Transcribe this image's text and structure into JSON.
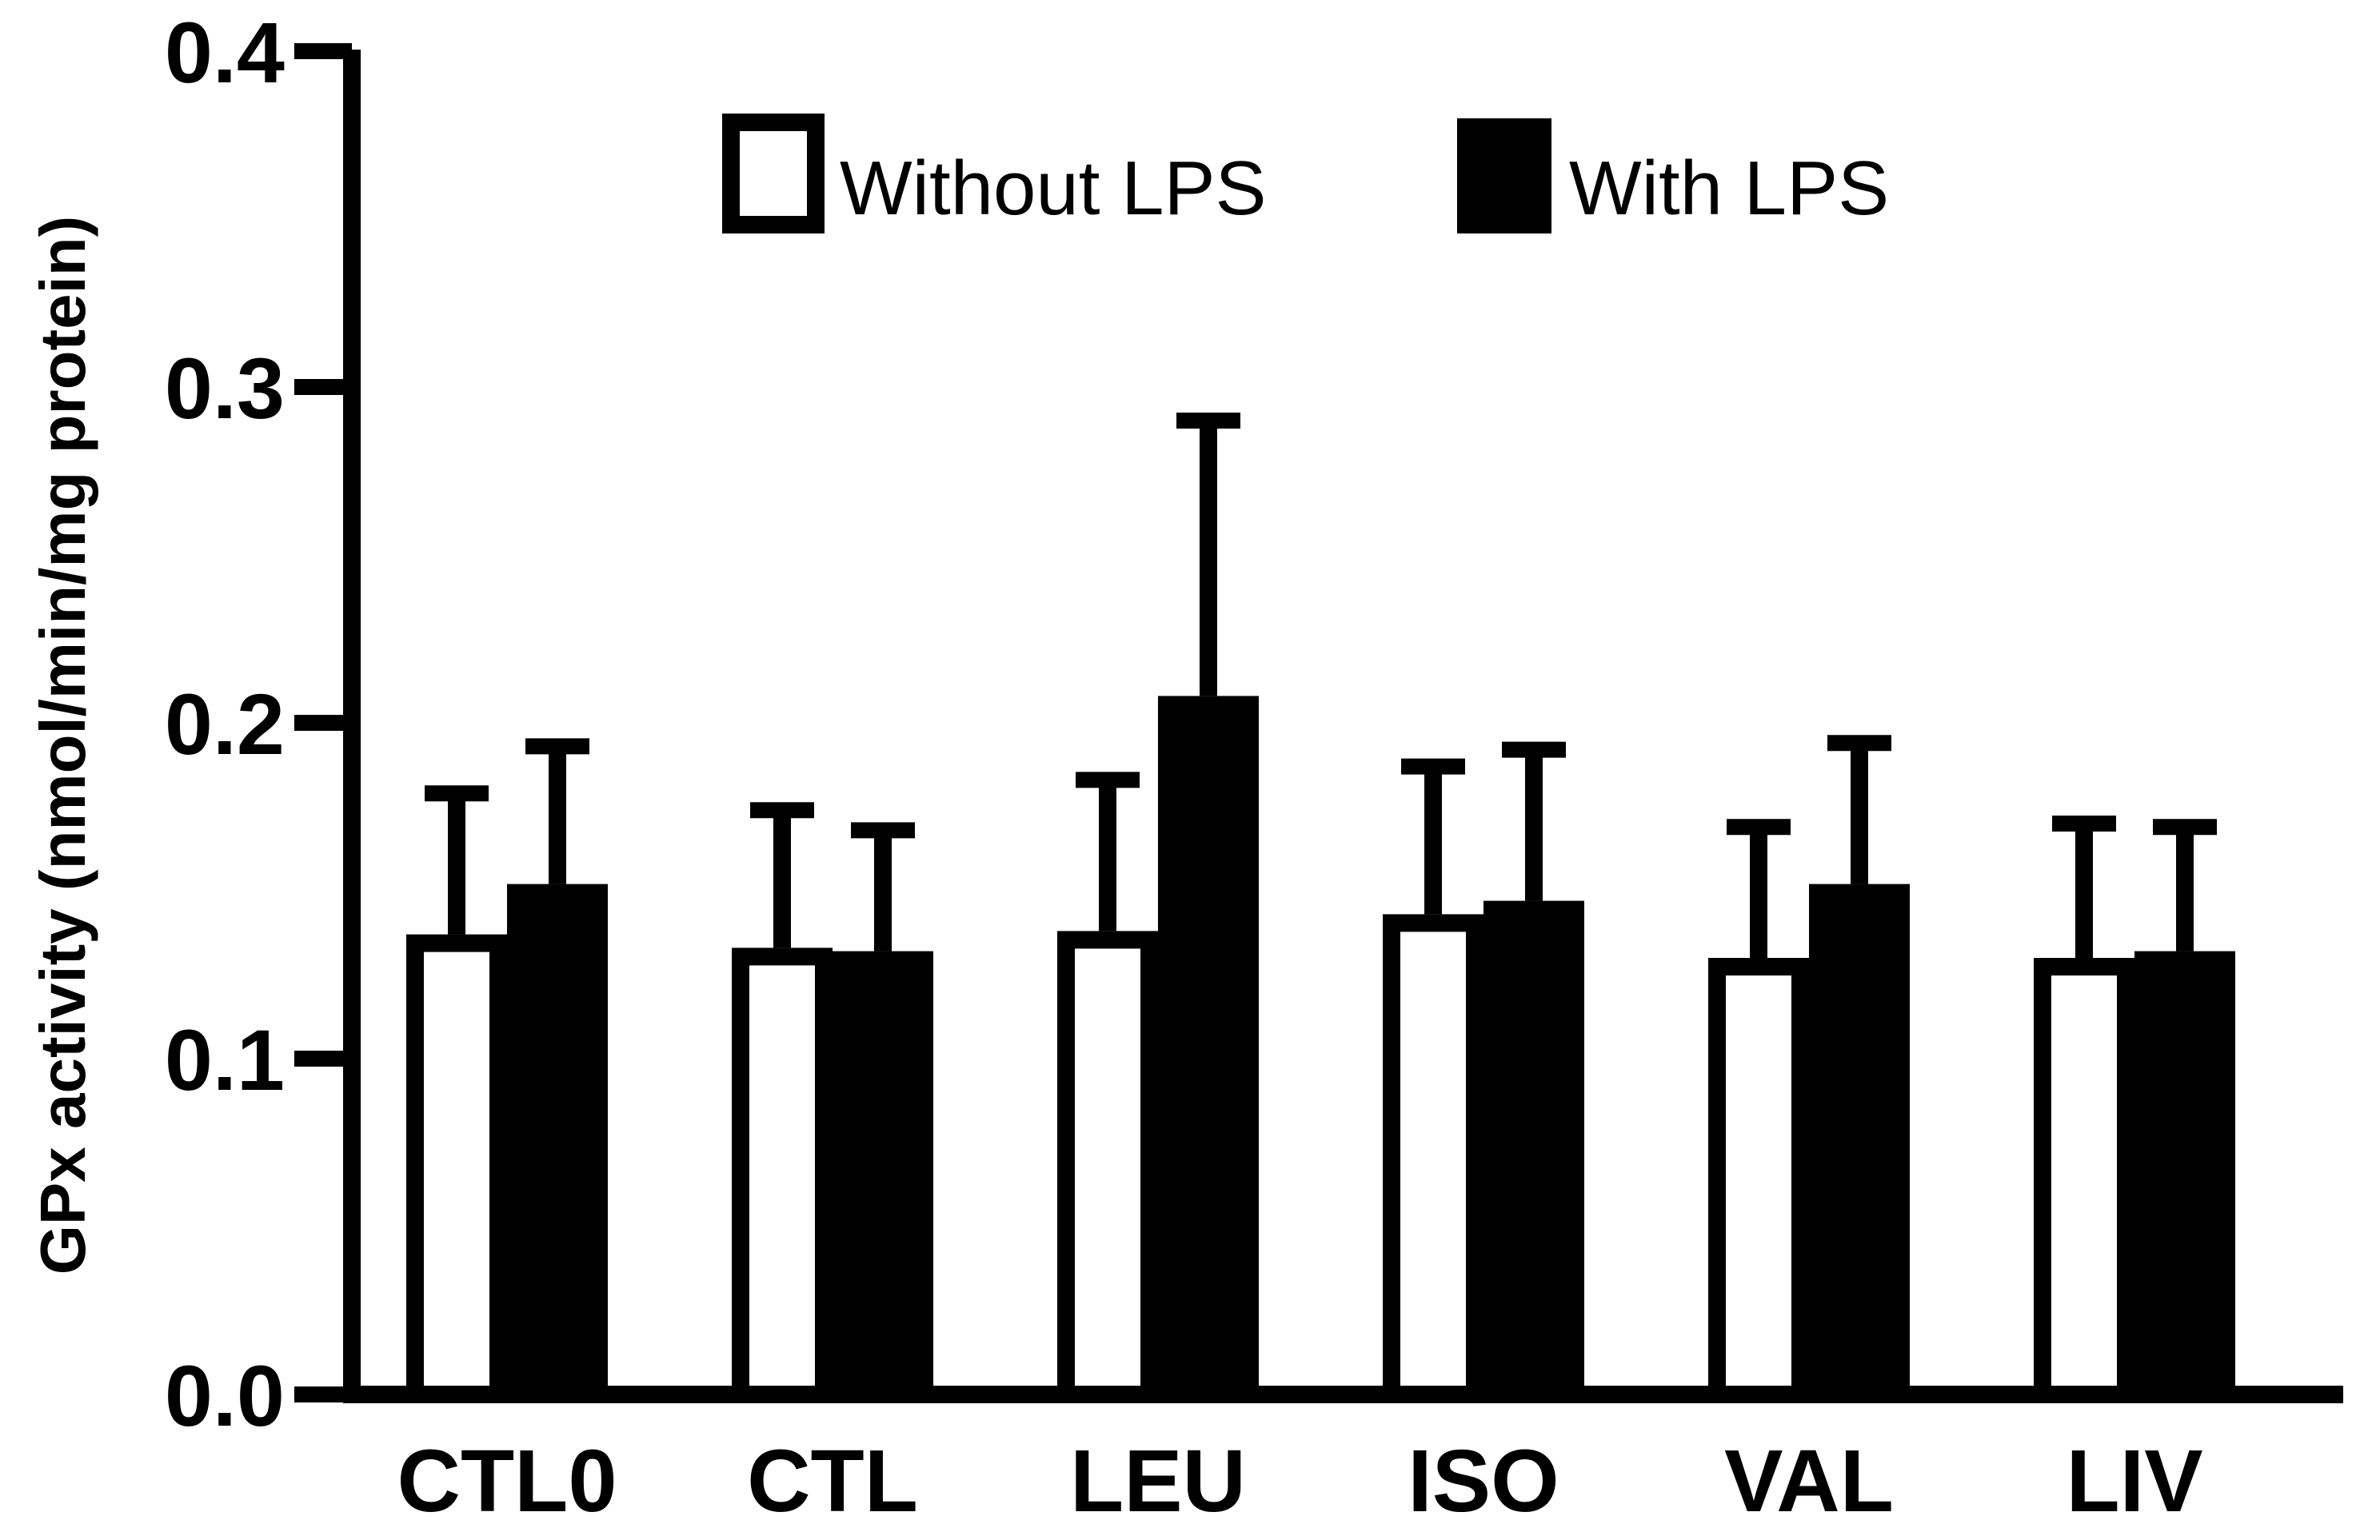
{
  "chart_data": {
    "type": "bar",
    "title": "",
    "xlabel": "",
    "ylabel": "GPx activity (nmol/min/mg protein)",
    "ylim": [
      0,
      0.4
    ],
    "yticks": [
      0.0,
      0.1,
      0.2,
      0.3,
      0.4
    ],
    "ytick_labels": [
      "0.0",
      "0.1",
      "0.2",
      "0.3",
      "0.4"
    ],
    "categories": [
      "CTL0",
      "CTL",
      "LEU",
      "ISO",
      "VAL",
      "LIV"
    ],
    "legend_position": "top-center",
    "series": [
      {
        "name": "Without LPS",
        "style": "open",
        "values": [
          0.137,
          0.133,
          0.138,
          0.143,
          0.13,
          0.13
        ],
        "errors": [
          0.042,
          0.041,
          0.045,
          0.044,
          0.039,
          0.04
        ]
      },
      {
        "name": "With LPS",
        "style": "filled",
        "values": [
          0.152,
          0.132,
          0.208,
          0.147,
          0.152,
          0.132
        ],
        "errors": [
          0.041,
          0.036,
          0.082,
          0.045,
          0.042,
          0.037
        ]
      }
    ],
    "colors": {
      "bar_fill": "#000000",
      "open_fill": "#ffffff",
      "stroke": "#000000"
    }
  }
}
